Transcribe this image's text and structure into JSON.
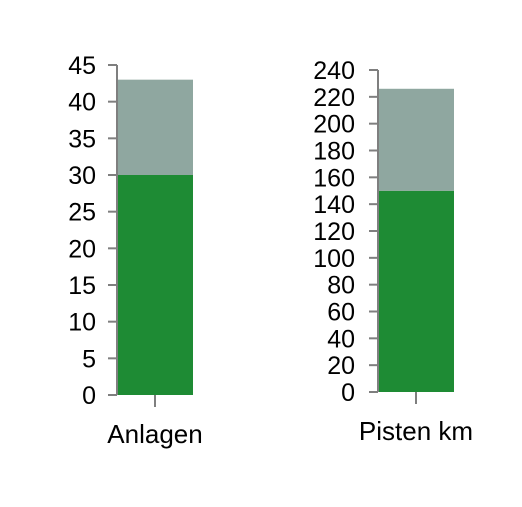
{
  "colors": {
    "lower_segment": "#1e8b34",
    "upper_segment": "#8fa7a0",
    "axis": "#7f7f7f"
  },
  "chart_data": [
    {
      "type": "bar",
      "stacked": true,
      "categories": [
        "Anlagen"
      ],
      "series": [
        {
          "values": [
            30
          ]
        },
        {
          "values": [
            13
          ]
        }
      ],
      "ylim": [
        0,
        45
      ],
      "yticks": [
        0,
        5,
        10,
        15,
        20,
        25,
        30,
        35,
        40,
        45
      ],
      "grid": false
    },
    {
      "type": "bar",
      "stacked": true,
      "categories": [
        "Pisten km"
      ],
      "series": [
        {
          "values": [
            150
          ]
        },
        {
          "values": [
            76
          ]
        }
      ],
      "ylim": [
        0,
        240
      ],
      "yticks": [
        0,
        20,
        40,
        60,
        80,
        100,
        120,
        140,
        160,
        180,
        200,
        220,
        240
      ],
      "grid": false
    }
  ]
}
